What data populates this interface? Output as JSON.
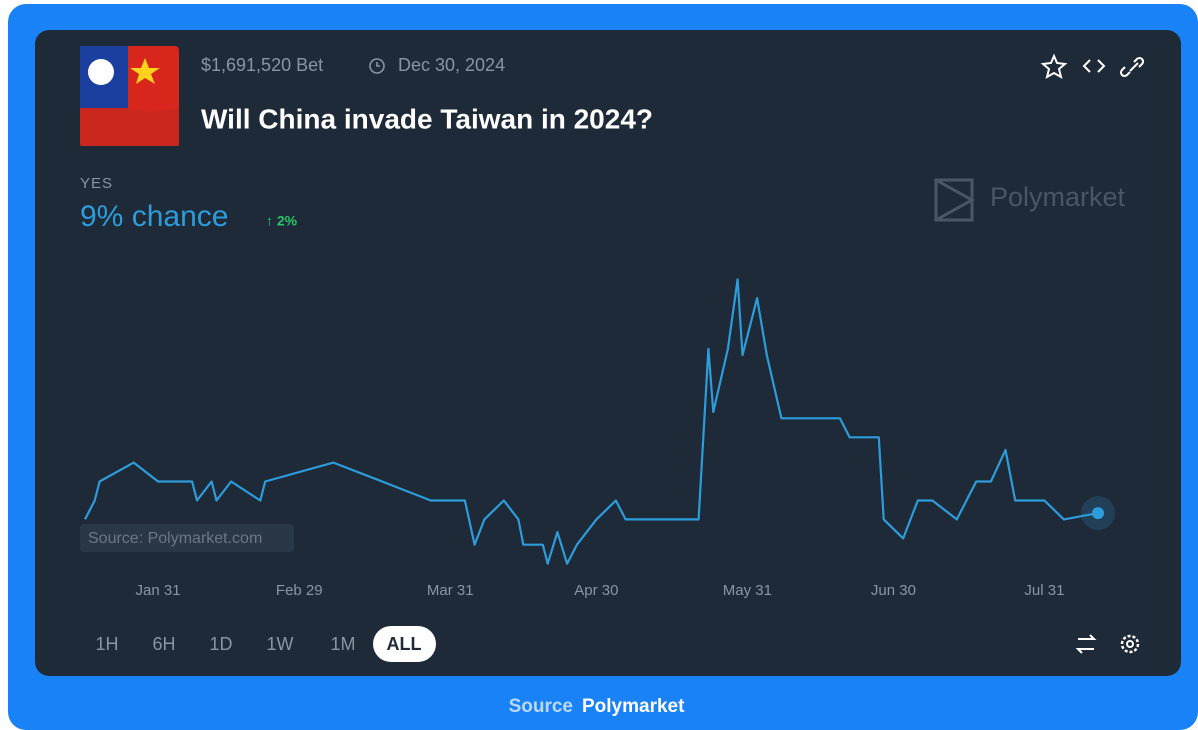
{
  "header": {
    "volume": "$1,691,520 Bet",
    "end_date": "Dec 30, 2024",
    "title": "Will China invade Taiwan in 2024?"
  },
  "outcome": {
    "label": "YES",
    "chance": "9% chance",
    "change": "↑ 2%"
  },
  "brand": "Polymarket",
  "watermark": "Source: Polymarket.com",
  "ranges": [
    "1H",
    "6H",
    "1D",
    "1W",
    "1M",
    "ALL"
  ],
  "footer": {
    "prefix": "Source",
    "name": "Polymarket"
  },
  "chart_data": {
    "type": "line",
    "color": "#2d9cdb",
    "x": [
      "Jan 16",
      "Jan 18",
      "Jan 19",
      "Jan 26",
      "Jan 31",
      "Feb 7",
      "Feb 8",
      "Feb 11",
      "Feb 12",
      "Feb 15",
      "Feb 21",
      "Feb 22",
      "Mar 7",
      "Mar 17",
      "Mar 27",
      "Apr 3",
      "Apr 5",
      "Apr 7",
      "Apr 11",
      "Apr 14",
      "Apr 15",
      "Apr 19",
      "Apr 20",
      "Apr 22",
      "Apr 24",
      "Apr 26",
      "Apr 30",
      "May 4",
      "May 6",
      "May 21",
      "May 23",
      "May 24",
      "May 27",
      "May 29",
      "May 30",
      "Jun 2",
      "Jun 4",
      "Jun 7",
      "Jun 19",
      "Jun 21",
      "Jun 27",
      "Jun 28",
      "Jul 2",
      "Jul 5",
      "Jul 8",
      "Jul 13",
      "Jul 17",
      "Jul 20",
      "Jul 23",
      "Jul 25",
      "Jul 31",
      "Aug 4",
      "Aug 11"
    ],
    "values": [
      8,
      11,
      14,
      17,
      14,
      14,
      11,
      14,
      11,
      14,
      11,
      14,
      17,
      14,
      11,
      11,
      4,
      8,
      11,
      8,
      4,
      4,
      1,
      6,
      1,
      4,
      8,
      11,
      8,
      8,
      35,
      25,
      35,
      46,
      34,
      43,
      34,
      24,
      24,
      21,
      21,
      8,
      5,
      11,
      11,
      8,
      14,
      14,
      19,
      11,
      11,
      8,
      9
    ],
    "xlim": [
      "Jan 16",
      "Aug 11"
    ],
    "xticks": [
      "Jan 31",
      "Feb 29",
      "Mar 31",
      "Apr 30",
      "May 31",
      "Jun 30",
      "Jul 31"
    ],
    "ylim": [
      0,
      50
    ]
  }
}
